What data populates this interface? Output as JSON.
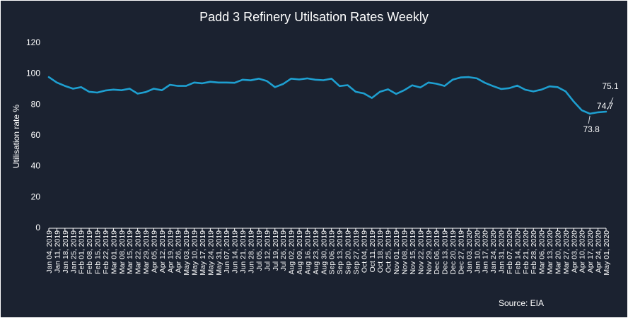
{
  "chart_data": {
    "type": "line",
    "title": "Padd 3 Refinery Utilsation Rates Weekly",
    "ylabel": "Utilisation  rate  %",
    "xlabel": "",
    "ylim": [
      0,
      120
    ],
    "yticks": [
      0,
      20,
      40,
      60,
      80,
      100,
      120
    ],
    "grid": false,
    "legend": "none",
    "line_color": "#1e9fd0",
    "background_color": "#1b2230",
    "source": "Source:  EIA",
    "x": [
      "Jan 04, 2019",
      "Jan 11, 2019",
      "Jan 18, 2019",
      "Jan 25, 2019",
      "Feb 01, 2019",
      "Feb 08, 2019",
      "Feb 15, 2019",
      "Feb 22, 2019",
      "Mar 01, 2019",
      "Mar 08, 2019",
      "Mar 15, 2019",
      "Mar 22, 2019",
      "Mar 29, 2019",
      "Apr 05, 2019",
      "Apr 12, 2019",
      "Apr 19, 2019",
      "Apr 26, 2019",
      "May 03, 2019",
      "May 10, 2019",
      "May 17, 2019",
      "May 24, 2019",
      "May 31, 2019",
      "Jun 07, 2019",
      "Jun 14, 2019",
      "Jun 21, 2019",
      "Jun 28, 2019",
      "Jul 05, 2019",
      "Jul 12, 2019",
      "Jul 19, 2019",
      "Jul 26, 2019",
      "Aug 02, 2019",
      "Aug 09, 2019",
      "Aug 16, 2019",
      "Aug 23, 2019",
      "Aug 30, 2019",
      "Sep 06, 2019",
      "Sep 13, 2019",
      "Sep 20, 2019",
      "Sep 27, 2019",
      "Oct 04, 2019",
      "Oct 11, 2019",
      "Oct 18, 2019",
      "Oct 25, 2019",
      "Nov 01, 2019",
      "Nov 08, 2019",
      "Nov 15, 2019",
      "Nov 22, 2019",
      "Nov 29, 2019",
      "Dec 06, 2019",
      "Dec 13, 2019",
      "Dec 20, 2019",
      "Dec 27, 2019",
      "Jan 03, 2020",
      "Jan 10, 2020",
      "Jan 17, 2020",
      "Jan 24, 2020",
      "Jan 31, 2020",
      "Feb 07, 2020",
      "Feb 14, 2020",
      "Feb 21, 2020",
      "Feb 28, 2020",
      "Mar 06, 2020",
      "Mar 13, 2020",
      "Mar 20, 2020",
      "Mar 27, 2020",
      "Apr 03, 2020",
      "Apr 10, 2020",
      "Apr 17, 2020",
      "Apr 24, 2020",
      "May 01, 2020"
    ],
    "values": [
      97.5,
      94.0,
      91.8,
      90.0,
      91.0,
      88.0,
      87.5,
      88.8,
      89.4,
      89.0,
      90.0,
      86.8,
      87.8,
      90.0,
      89.0,
      92.5,
      91.8,
      91.8,
      94.0,
      93.5,
      94.5,
      94.0,
      94.0,
      93.8,
      95.8,
      95.4,
      96.5,
      95.0,
      91.0,
      93.0,
      96.5,
      96.0,
      96.7,
      95.8,
      95.5,
      96.5,
      91.7,
      92.3,
      88.0,
      87.0,
      84.0,
      88.0,
      89.6,
      86.6,
      89.0,
      92.2,
      90.8,
      94.0,
      93.2,
      91.8,
      95.8,
      97.3,
      97.5,
      96.7,
      93.8,
      91.7,
      89.8,
      90.3,
      92.0,
      89.3,
      88.2,
      89.4,
      91.5,
      91.0,
      88.2,
      81.6,
      76.0,
      73.8,
      74.7,
      75.1
    ],
    "annotations": [
      {
        "label": "73.8",
        "x": "Apr 17, 2020",
        "y": 73.8
      },
      {
        "label": "74.7",
        "x": "Apr 24, 2020",
        "y": 74.7
      },
      {
        "label": "75.1",
        "x": "May 01, 2020",
        "y": 75.1
      }
    ]
  }
}
